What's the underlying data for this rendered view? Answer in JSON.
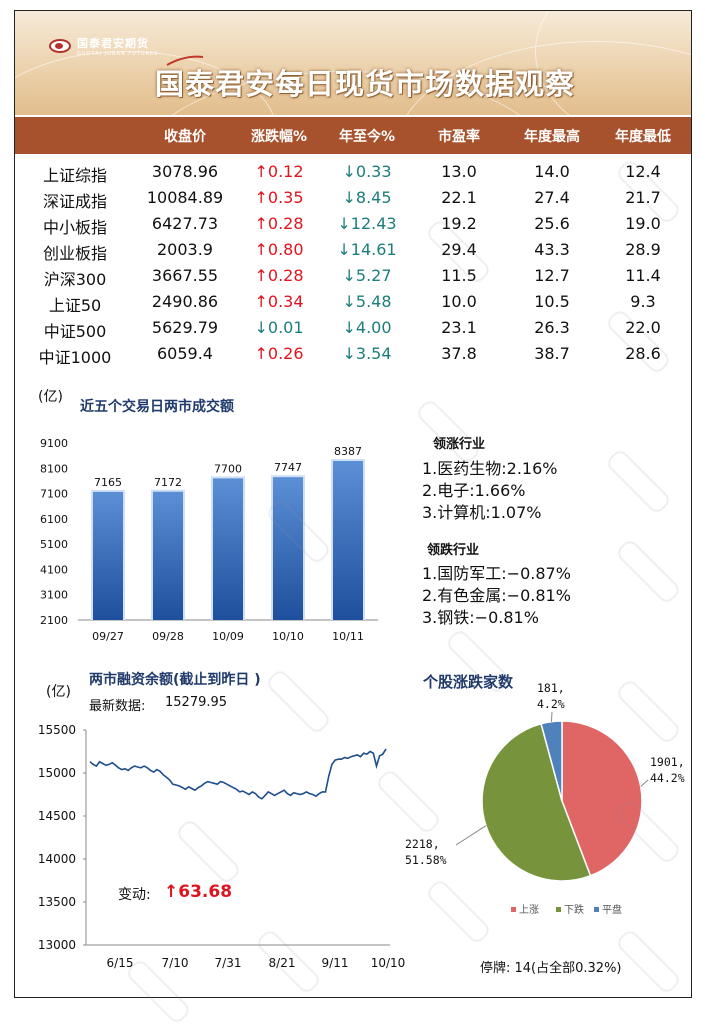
{
  "header": {
    "brand_cn": "国泰君安期货",
    "brand_en": "GUOTAI JUNAN FUTURES",
    "title": "国泰君安每日现货市场数据观察"
  },
  "table": {
    "columns": [
      "收盘价",
      "涨跌幅%",
      "年至今%",
      "市盈率",
      "年度最高",
      "年度最低"
    ],
    "rows": [
      {
        "name": "上证综指",
        "close": "3078.96",
        "chg": "↑0.12",
        "chg_dir": "up",
        "ytd": "↓0.33",
        "ytd_dir": "dn",
        "pe": "13.0",
        "high": "14.0",
        "low": "12.4"
      },
      {
        "name": "深证成指",
        "close": "10084.89",
        "chg": "↑0.35",
        "chg_dir": "up",
        "ytd": "↓8.45",
        "ytd_dir": "dn",
        "pe": "22.1",
        "high": "27.4",
        "low": "21.7"
      },
      {
        "name": "中小板指",
        "close": "6427.73",
        "chg": "↑0.28",
        "chg_dir": "up",
        "ytd": "↓12.43",
        "ytd_dir": "dn",
        "pe": "19.2",
        "high": "25.6",
        "low": "19.0"
      },
      {
        "name": "创业板指",
        "close": "2003.9",
        "chg": "↑0.80",
        "chg_dir": "up",
        "ytd": "↓14.61",
        "ytd_dir": "dn",
        "pe": "29.4",
        "high": "43.3",
        "low": "28.9"
      },
      {
        "name": "沪深300",
        "close": "3667.55",
        "chg": "↑0.28",
        "chg_dir": "up",
        "ytd": "↓5.27",
        "ytd_dir": "dn",
        "pe": "11.5",
        "high": "12.7",
        "low": "11.4"
      },
      {
        "name": "上证50",
        "close": "2490.86",
        "chg": "↑0.34",
        "chg_dir": "up",
        "ytd": "↓5.48",
        "ytd_dir": "dn",
        "pe": "10.0",
        "high": "10.5",
        "low": "9.3"
      },
      {
        "name": "中证500",
        "close": "5629.79",
        "chg": "↓0.01",
        "chg_dir": "dn",
        "ytd": "↓4.00",
        "ytd_dir": "dn",
        "pe": "23.1",
        "high": "26.3",
        "low": "22.0"
      },
      {
        "name": "中证1000",
        "close": "6059.4",
        "chg": "↑0.26",
        "chg_dir": "up",
        "ytd": "↓3.54",
        "ytd_dir": "dn",
        "pe": "37.8",
        "high": "38.7",
        "low": "28.6"
      }
    ]
  },
  "turnover": {
    "unit": "(亿)",
    "title": "近五个交易日两市成交额"
  },
  "industries": {
    "up_title": "领涨行业",
    "up": [
      "1.医药生物:2.16%",
      "2.电子:1.66%",
      "3.计算机:1.07%"
    ],
    "down_title": "领跌行业",
    "down": [
      "1.国防军工:−0.87%",
      "2.有色金属:−0.81%",
      "3.钢铁:−0.81%"
    ]
  },
  "margin": {
    "unit": "(亿)",
    "title": "两市融资余额(截止到昨日 )",
    "latest_label": "最新数据:",
    "latest_value": "15279.95",
    "change_label": "变动:",
    "change_value": "↑63.68"
  },
  "breadth": {
    "title": "个股涨跌家数",
    "suspended": "停牌:  14(占全部0.32%)"
  },
  "colors": {
    "header_bar": "#a7522d",
    "bar_blue": "#2f62ae",
    "line_blue": "#1f4e8c",
    "pie_up": "#e06666",
    "pie_down": "#77933c",
    "pie_flat": "#4f81bd",
    "rise_red": "#e0141e",
    "fall_teal": "#1b7e7a"
  },
  "chart_data": [
    {
      "type": "bar",
      "categories": [
        "09/27",
        "09/28",
        "10/09",
        "10/10",
        "10/11"
      ],
      "values": [
        7165,
        7172,
        7700,
        7747,
        8387
      ],
      "ylim": [
        2100,
        9100
      ],
      "yticks": [
        9100,
        8100,
        7100,
        6100,
        5100,
        4100,
        3100,
        2100
      ],
      "grid": false
    },
    {
      "type": "line",
      "x_ticks": [
        "6/15",
        "7/10",
        "7/31",
        "8/21",
        "9/11",
        "10/10"
      ],
      "ylim": [
        13000,
        15500
      ],
      "yticks": [
        15500,
        15000,
        14500,
        14000,
        13500,
        13000
      ],
      "values": [
        15130,
        15100,
        15080,
        15130,
        15110,
        15090,
        15100,
        15120,
        15090,
        15060,
        15040,
        15050,
        15030,
        15060,
        15080,
        15070,
        15060,
        15080,
        15060,
        15030,
        15010,
        15040,
        15020,
        14980,
        14950,
        14920,
        14870,
        14860,
        14850,
        14830,
        14810,
        14840,
        14820,
        14800,
        14830,
        14850,
        14880,
        14900,
        14890,
        14880,
        14870,
        14900,
        14890,
        14870,
        14850,
        14830,
        14810,
        14780,
        14790,
        14770,
        14750,
        14780,
        14760,
        14720,
        14700,
        14740,
        14780,
        14760,
        14740,
        14760,
        14780,
        14800,
        14760,
        14740,
        14770,
        14760,
        14750,
        14760,
        14780,
        14760,
        14750,
        14730,
        14760,
        14780,
        14780,
        14960,
        15100,
        15150,
        15160,
        15160,
        15180,
        15170,
        15190,
        15200,
        15210,
        15190,
        15230,
        15220,
        15250,
        15230,
        15080,
        15200,
        15220,
        15280
      ]
    },
    {
      "type": "pie",
      "slices": [
        {
          "name": "上涨",
          "value": 1901,
          "label": "1901,\n44.2%"
        },
        {
          "name": "下跌",
          "value": 2218,
          "label": "2218,\n51.58%"
        },
        {
          "name": "平盘",
          "value": 181,
          "label": "181,\n4.2%"
        }
      ],
      "legend": "bottom"
    }
  ]
}
